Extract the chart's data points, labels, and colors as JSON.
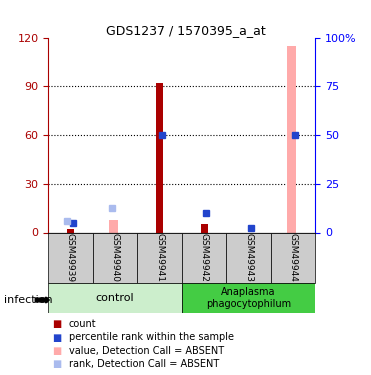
{
  "title": "GDS1237 / 1570395_a_at",
  "samples": [
    "GSM49939",
    "GSM49940",
    "GSM49941",
    "GSM49942",
    "GSM49943",
    "GSM49944"
  ],
  "group_labels": [
    "control",
    "Anaplasma\nphagocytophilum"
  ],
  "red_bars": [
    null,
    null,
    92,
    5,
    null,
    null
  ],
  "pink_bars": [
    null,
    8,
    null,
    null,
    null,
    115
  ],
  "blue_squares": [
    6,
    null,
    60,
    12,
    3,
    60
  ],
  "lightblue_squares": [
    7,
    15,
    null,
    null,
    null,
    null
  ],
  "red_small": [
    2,
    null,
    null,
    4,
    null,
    null
  ],
  "ylim_left": [
    0,
    120
  ],
  "ylim_right": [
    0,
    100
  ],
  "yticks_left": [
    0,
    30,
    60,
    90,
    120
  ],
  "yticks_right": [
    0,
    25,
    50,
    75,
    100
  ],
  "ytick_labels_left": [
    "0",
    "30",
    "60",
    "90",
    "120"
  ],
  "ytick_labels_right": [
    "0",
    "25",
    "50",
    "75",
    "100%"
  ],
  "colors": {
    "red": "#aa0000",
    "pink": "#ffaaaa",
    "blue": "#2244cc",
    "lightblue": "#aabbee",
    "control_bg": "#cceecc",
    "anaplasma_bg": "#44cc44",
    "label_area_bg": "#cccccc"
  },
  "legend_items": [
    {
      "label": "count",
      "color": "#aa0000"
    },
    {
      "label": "percentile rank within the sample",
      "color": "#2244cc"
    },
    {
      "label": "value, Detection Call = ABSENT",
      "color": "#ffaaaa"
    },
    {
      "label": "rank, Detection Call = ABSENT",
      "color": "#aabbee"
    }
  ],
  "infection_label": "infection",
  "bar_width": 0.35
}
